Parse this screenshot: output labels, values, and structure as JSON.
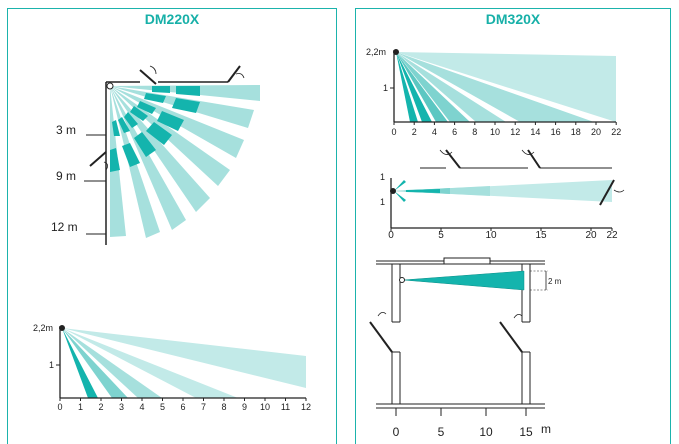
{
  "colors": {
    "accent": "#1bb3ac",
    "teal_dark": "#14b4ad",
    "teal_mid": "#7ed3cf",
    "teal_light": "#a6e0dd",
    "teal_pale": "#c2eae8"
  },
  "left": {
    "title": "DM220X",
    "fan": {
      "labels": [
        "3 m",
        "9 m",
        "12 m"
      ]
    },
    "side": {
      "height_label": "2,2m",
      "y_tick": "1",
      "x_ticks": [
        "0",
        "1",
        "2",
        "3",
        "4",
        "5",
        "6",
        "7",
        "8",
        "9",
        "10",
        "11",
        "12"
      ]
    }
  },
  "right": {
    "title": "DM320X",
    "side": {
      "height_label": "2,2m",
      "y_tick": "1",
      "x_ticks": [
        "0",
        "2",
        "4",
        "6",
        "8",
        "10",
        "12",
        "14",
        "16",
        "18",
        "20",
        "22"
      ]
    },
    "top": {
      "y_ticks": [
        "1",
        "1"
      ],
      "x_ticks": [
        "0",
        "5",
        "10",
        "15",
        "20",
        "22"
      ]
    },
    "room": {
      "width_label": "2 m",
      "x_ticks": [
        "0",
        "5",
        "10",
        "15"
      ],
      "unit": "m"
    }
  }
}
